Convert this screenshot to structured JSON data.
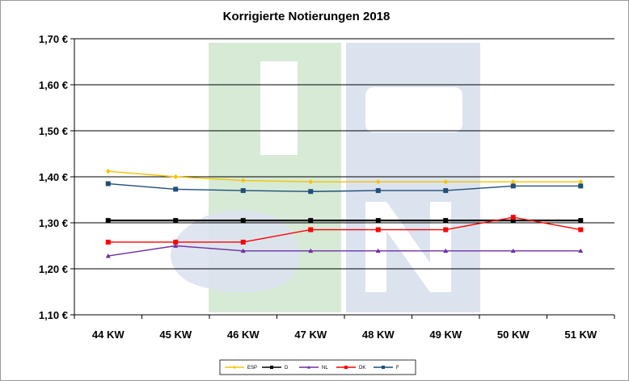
{
  "chart_data": {
    "type": "line",
    "title": "Korrigierte Notierungen 2018",
    "categories": [
      "44 KW",
      "45 KW",
      "46 KW",
      "47 KW",
      "48 KW",
      "49 KW",
      "50 KW",
      "51 KW"
    ],
    "ylim": [
      1.1,
      1.7
    ],
    "yticks": [
      1.1,
      1.2,
      1.3,
      1.4,
      1.5,
      1.6,
      1.7
    ],
    "ytick_labels": [
      "1,10 €",
      "1,20 €",
      "1,30 €",
      "1,40 €",
      "1,50 €",
      "1,60 €",
      "1,70 €"
    ],
    "grid": true,
    "legend_position": "bottom",
    "series": [
      {
        "name": "ESP",
        "color": "#f5c400",
        "marker": "diamond",
        "values": [
          1.412,
          1.4,
          1.392,
          1.389,
          1.389,
          1.389,
          1.389,
          1.389
        ]
      },
      {
        "name": "D",
        "color": "#000000",
        "marker": "square",
        "values": [
          1.305,
          1.305,
          1.305,
          1.305,
          1.305,
          1.305,
          1.305,
          1.305
        ]
      },
      {
        "name": "NL",
        "color": "#7030a0",
        "marker": "triangle",
        "values": [
          1.228,
          1.25,
          1.239,
          1.239,
          1.239,
          1.239,
          1.239,
          1.239
        ]
      },
      {
        "name": "DK",
        "color": "#ff0000",
        "marker": "square",
        "values": [
          1.258,
          1.258,
          1.258,
          1.285,
          1.285,
          1.285,
          1.312,
          1.285
        ]
      },
      {
        "name": "F",
        "color": "#1f4e79",
        "marker": "square",
        "values": [
          1.385,
          1.373,
          1.37,
          1.368,
          1.37,
          1.37,
          1.38,
          1.38
        ]
      }
    ]
  }
}
